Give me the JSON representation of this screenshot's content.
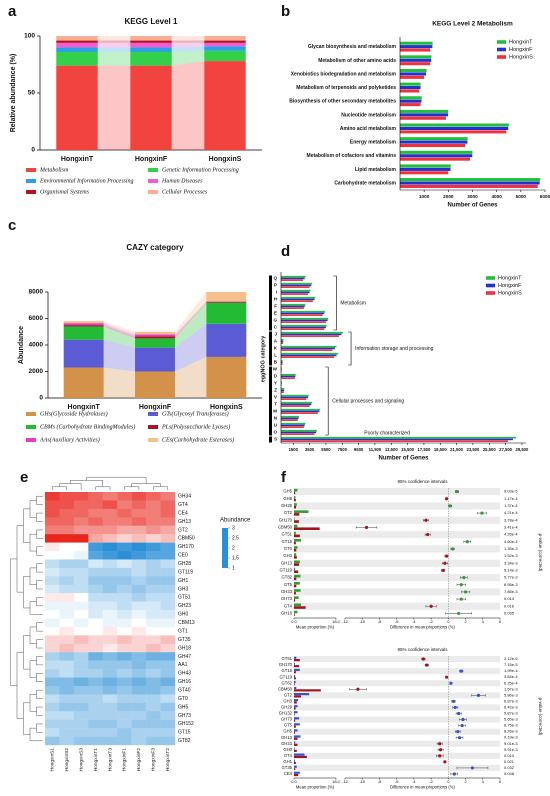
{
  "chart_data": [
    {
      "panel_label": "a",
      "type": "stacked_bar",
      "title": "KEGG Level 1",
      "ylabel": "Relative abundance (%)",
      "categories": [
        "HongxinT",
        "HongxinF",
        "HongxinS"
      ],
      "ylim": [
        0,
        100
      ],
      "yticks": [
        0,
        50,
        100
      ],
      "series": [
        {
          "name": "Metabolism",
          "color": "#f2433e",
          "values": [
            74,
            74,
            78
          ]
        },
        {
          "name": "Genetic Information Processing",
          "color": "#33d04a",
          "values": [
            12,
            12,
            9
          ]
        },
        {
          "name": "Environmental Information Processing",
          "color": "#2a9fe6",
          "values": [
            4,
            4,
            4
          ]
        },
        {
          "name": "Human Diseases",
          "color": "#f45ad2",
          "values": [
            4,
            4,
            3
          ]
        },
        {
          "name": "Organismal Systems",
          "color": "#b3111c",
          "values": [
            2,
            2,
            2
          ]
        },
        {
          "name": "Cellular Processes",
          "color": "#f8ad94",
          "values": [
            4,
            4,
            4
          ]
        }
      ]
    },
    {
      "panel_label": "b",
      "type": "hbar",
      "title": "KEGG Level 2 Metabolism",
      "xlabel": "Number of Genes",
      "categories": [
        "Glycan biosynthesis and metabolism",
        "Metabolism of other amino acids",
        "Xenobiotics biodegradation and metabolism",
        "Metabolism of terpenoids and polyketides",
        "Biosynthesis of other secondary metabolites",
        "Nucleotide metabolism",
        "Amino acid metabolism",
        "Energy metabolism",
        "Metabolism of cofactors and vitamins",
        "Lipid metabolism",
        "Carbohydrate metabolism"
      ],
      "xlim": [
        0,
        6000
      ],
      "xticks": [
        1000,
        2000,
        3000,
        4000,
        5000,
        6000
      ],
      "series": [
        {
          "name": "HongxinT",
          "color": "#22c03a",
          "values": [
            1350,
            1300,
            1100,
            850,
            900,
            2000,
            4500,
            2800,
            3000,
            2100,
            5800
          ]
        },
        {
          "name": "HongxinF",
          "color": "#2430d0",
          "values": [
            1340,
            1290,
            1080,
            850,
            890,
            1990,
            4480,
            2790,
            2990,
            2090,
            5780
          ]
        },
        {
          "name": "HongxinS",
          "color": "#f0303a",
          "values": [
            1250,
            1250,
            1000,
            800,
            850,
            1900,
            4400,
            2700,
            2900,
            2000,
            5700
          ]
        }
      ]
    },
    {
      "panel_label": "c",
      "type": "stacked_bar",
      "title": "CAZY category",
      "ylabel": "Abundance",
      "categories": [
        "HongxinT",
        "HongxinF",
        "HongxinS"
      ],
      "ylim": [
        0,
        8000
      ],
      "yticks": [
        0,
        2000,
        4000,
        6000,
        8000
      ],
      "series": [
        {
          "name": "GHs(Glycoside Hydrolases)",
          "color": "#d4914a",
          "values": [
            2300,
            2000,
            3100
          ]
        },
        {
          "name": "GTs(Glycosyl Transferases)",
          "color": "#5b5bd6",
          "values": [
            2100,
            1800,
            2500
          ]
        },
        {
          "name": "CBMs (Carbohydrate BindingModules)",
          "color": "#22bb33",
          "values": [
            1000,
            700,
            1600
          ]
        },
        {
          "name": "PLs(Polysaccharide Lyases)",
          "color": "#aa1122",
          "values": [
            100,
            150,
            50
          ]
        },
        {
          "name": "AAs(Auxiliary Activities)",
          "color": "#e040c0",
          "values": [
            150,
            150,
            50
          ]
        },
        {
          "name": "CEs(Carbohydrate Esterases)",
          "color": "#f5c08a",
          "values": [
            150,
            200,
            700
          ]
        }
      ]
    },
    {
      "panel_label": "d",
      "type": "hbar",
      "xlabel": "Number of Genes",
      "ylabel": "eggNOG category",
      "groups": [
        {
          "label": "Metabolism",
          "categories": [
            "Q",
            "P",
            "I",
            "H",
            "F",
            "E",
            "G",
            "C"
          ]
        },
        {
          "label": "Information storage and processing",
          "categories": [
            "J",
            "A",
            "K",
            "L",
            "B"
          ]
        },
        {
          "label": "Cellular processes and signaling",
          "categories": [
            "W",
            "D",
            "Y",
            "Z",
            "V",
            "T",
            "M",
            "N",
            "U",
            "O"
          ]
        },
        {
          "label": "Poorly characterized",
          "categories": [
            "S"
          ]
        }
      ],
      "xlim": [
        0,
        30000
      ],
      "xticks": [
        1500,
        3500,
        5500,
        7500,
        9500,
        {
          "value": 11500,
          "label": "11,500"
        },
        {
          "value": 13500,
          "label": "13,500"
        },
        {
          "value": 15500,
          "label": "15,500"
        },
        {
          "value": 17500,
          "label": "17,500"
        },
        {
          "value": 19500,
          "label": "19,500"
        },
        {
          "value": 21500,
          "label": "21,500"
        },
        {
          "value": 23500,
          "label": "23,500"
        },
        {
          "value": 25500,
          "label": "25,500"
        },
        {
          "value": 27500,
          "label": "27,500"
        },
        {
          "value": 29500,
          "label": "29,500"
        }
      ],
      "series": [
        {
          "name": "HongxinT",
          "color": "#22c03a",
          "values": [
            3000,
            3800,
            3600,
            4200,
            3000,
            5400,
            5800,
            5600,
            7600,
            300,
            6800,
            7000,
            200,
            100,
            1800,
            100,
            400,
            3400,
            3800,
            4800,
            2200,
            3000,
            4400,
            28800
          ]
        },
        {
          "name": "HongxinF",
          "color": "#2430d0",
          "values": [
            2900,
            3700,
            3500,
            4100,
            2900,
            5300,
            5700,
            5500,
            7400,
            280,
            6600,
            6800,
            190,
            90,
            1750,
            90,
            380,
            3300,
            3700,
            4700,
            2150,
            2900,
            4300,
            28400
          ]
        },
        {
          "name": "HongxinS",
          "color": "#f0303a",
          "values": [
            2700,
            3500,
            3300,
            3900,
            2800,
            5100,
            5500,
            5300,
            7100,
            260,
            6300,
            6500,
            180,
            80,
            1700,
            80,
            350,
            3100,
            3500,
            4500,
            2050,
            2800,
            4100,
            27800
          ]
        }
      ]
    },
    {
      "panel_label": "e",
      "type": "heatmap",
      "colorbar_title": "Abundance",
      "clim": [
        1,
        3
      ],
      "colorbar_ticks": [
        3,
        2.5,
        2,
        1.5,
        1
      ],
      "colormap": [
        "#2b8fd6",
        "#ffffff",
        "#e8261c"
      ],
      "columns": [
        "HongxinS1",
        "HongxinS2",
        "HongxinS3",
        "HongxinT1",
        "HongxinT3",
        "HongxinF1",
        "HongxinF2",
        "HongxinF3",
        "HongxinT2"
      ],
      "rows": [
        "GH34",
        "GT4",
        "CE4",
        "GH13",
        "GT2",
        "CBM50",
        "GH170",
        "CE0",
        "GH28",
        "GT119",
        "GH1",
        "GH3",
        "GT51",
        "GH23",
        "GH0",
        "CBM13",
        "GT1",
        "GT35",
        "GH18",
        "GH47",
        "AA1",
        "GH43",
        "GH16",
        "GT40",
        "GT0",
        "GH5",
        "GH73",
        "GH152",
        "GT15",
        "GT82"
      ],
      "values": [
        [
          2.9,
          2.8,
          2.8,
          2.7,
          2.6,
          2.7,
          2.8,
          2.7,
          2.6
        ],
        [
          2.8,
          2.8,
          2.7,
          2.7,
          2.8,
          2.6,
          2.7,
          2.6,
          2.7
        ],
        [
          2.8,
          2.7,
          2.7,
          2.6,
          2.6,
          2.7,
          2.6,
          2.6,
          2.7
        ],
        [
          2.7,
          2.7,
          2.6,
          2.7,
          2.6,
          2.6,
          2.7,
          2.6,
          2.6
        ],
        [
          2.6,
          2.6,
          2.5,
          2.5,
          2.5,
          2.4,
          2.4,
          2.5,
          2.4
        ],
        [
          3,
          3,
          3,
          2.4,
          2.3,
          2.2,
          2.3,
          2.2,
          2.3
        ],
        [
          2.1,
          2,
          2,
          1.1,
          1,
          1.1,
          1,
          1.1,
          1.2
        ],
        [
          2,
          2,
          1.9,
          1.2,
          1.1,
          1,
          1.1,
          1.2,
          1.2
        ],
        [
          1.7,
          1.6,
          1.6,
          1.8,
          1.7,
          1.8,
          1.7,
          1.6,
          1.7
        ],
        [
          1.8,
          1.7,
          1.7,
          1.6,
          1.6,
          1.6,
          1.7,
          1.6,
          1.6
        ],
        [
          1.7,
          1.6,
          1.7,
          1.5,
          1.5,
          1.5,
          1.6,
          1.5,
          1.5
        ],
        [
          1.8,
          1.7,
          1.7,
          1.6,
          1.5,
          1.6,
          1.5,
          1.6,
          1.6
        ],
        [
          2.1,
          2.1,
          2,
          1.7,
          1.7,
          1.7,
          1.6,
          1.7,
          1.7
        ],
        [
          1.9,
          1.9,
          1.9,
          1.8,
          1.8,
          1.7,
          1.8,
          1.8,
          1.7
        ],
        [
          2,
          1.9,
          2,
          1.8,
          1.9,
          1.8,
          1.9,
          1.8,
          1.8
        ],
        [
          1.9,
          2,
          1.9,
          2,
          1.9,
          1.9,
          2,
          1.9,
          1.9
        ],
        [
          2,
          2.1,
          2,
          2,
          2.1,
          2,
          2.1,
          2,
          2
        ],
        [
          2.2,
          2.2,
          2.3,
          2.2,
          2.2,
          2.3,
          2.2,
          2.2,
          2.3
        ],
        [
          2.2,
          2.3,
          2.2,
          2.2,
          2.1,
          2.2,
          2.2,
          2.3,
          2.2
        ],
        [
          1.6,
          1.5,
          1.6,
          1.3,
          1.4,
          1.3,
          1.4,
          1.3,
          1.3
        ],
        [
          1.7,
          1.7,
          1.6,
          1.5,
          1.5,
          1.5,
          1.4,
          1.5,
          1.5
        ],
        [
          1.6,
          1.7,
          1.6,
          1.6,
          1.5,
          1.6,
          1.5,
          1.6,
          1.5
        ],
        [
          1.4,
          1.4,
          1.3,
          1.4,
          1.3,
          1.4,
          1.3,
          1.4,
          1.3
        ],
        [
          1.5,
          1.4,
          1.5,
          1.5,
          1.4,
          1.5,
          1.4,
          1.4,
          1.5
        ],
        [
          1.7,
          1.6,
          1.6,
          1.6,
          1.7,
          1.6,
          1.6,
          1.6,
          1.7
        ],
        [
          1.6,
          1.5,
          1.5,
          1.6,
          1.6,
          1.5,
          1.5,
          1.6,
          1.5
        ],
        [
          1.7,
          1.7,
          1.6,
          1.6,
          1.6,
          1.6,
          1.6,
          1.5,
          1.6
        ],
        [
          1.6,
          1.6,
          1.6,
          1.5,
          1.5,
          1.6,
          1.5,
          1.5,
          1.5
        ],
        [
          1.7,
          1.6,
          1.6,
          1.6,
          1.6,
          1.5,
          1.6,
          1.6,
          1.6
        ],
        [
          1.5,
          1.6,
          1.5,
          1.5,
          1.5,
          1.5,
          1.6,
          1.5,
          1.5
        ]
      ]
    },
    {
      "panel_label": "f",
      "type": "extended_error_bar",
      "title": "95% confidence intervals",
      "xlabel": "Mean proportion (%)",
      "x2label": "Difference in mean proportions (%)",
      "p_label": "p-value (corrected)",
      "xlim": [
        0,
        18
      ],
      "xticks": [
        {
          "value": 0,
          "label": "0.0"
        },
        {
          "value": 18,
          "label": "18.0"
        }
      ],
      "x2lim": [
        -12,
        6
      ],
      "x2ticks": [
        -12,
        -10,
        -8,
        -6,
        -4,
        -2,
        0,
        2,
        4,
        6
      ],
      "categories": [
        "GH5",
        "GH8",
        "GH29",
        "GT2",
        "GH170",
        "CBM50",
        "GT51",
        "GT15",
        "GT0",
        "GH3",
        "GH13",
        "GT119",
        "GT82",
        "GT5",
        "GH23",
        "GH73",
        "GT4",
        "GH16"
      ],
      "series": [
        {
          "color": "#2e9e2e",
          "values": [
            1.5,
            0.6,
            1.2,
            6.2,
            0.2,
            1.5,
            0.8,
            3,
            1.5,
            1,
            2.5,
            0.5,
            2.8,
            2.5,
            2.8,
            2,
            3,
            1.5
          ]
        },
        {
          "color": "#a5121b",
          "values": [
            0.5,
            0.8,
            0.9,
            2.3,
            2.1,
            11,
            2.5,
            0.8,
            1,
            1.2,
            2.2,
            1.8,
            1,
            1,
            0.8,
            0.5,
            5,
            0.3
          ]
        }
      ],
      "differences": [
        1,
        -0.2,
        0.2,
        3.9,
        -2.6,
        -9.5,
        -2.4,
        2.2,
        0.5,
        -0.2,
        -0.4,
        -0.6,
        1.8,
        1.5,
        2,
        1.5,
        -2,
        1.2
      ],
      "errors": [
        0.2,
        0.1,
        0.2,
        0.5,
        0.3,
        1.2,
        0.3,
        0.4,
        0.2,
        0.2,
        0.3,
        0.2,
        0.4,
        0.5,
        0.5,
        0.5,
        0.6,
        1.5
      ],
      "p_values": [
        "9.03e-5",
        "1.17e-4",
        "1.37e-4",
        "4.21e-4",
        "3.78e-4",
        "3.41e-4",
        "4.26e-4",
        "4.60e-4",
        "1.39e-3",
        "1.52e-3",
        "3.34e-3",
        "5.14e-3",
        "5.77e-3",
        "6.95e-3",
        "7.85e-3",
        "0.014",
        "0.016",
        "0.035"
      ]
    },
    {
      "type": "extended_error_bar",
      "title": "95% confidence intervals",
      "xlabel": "Mean proportion (%)",
      "x2label": "Difference in mean proportions (%)",
      "p_label": "p-value (corrected)",
      "xlim": [
        0,
        18
      ],
      "xticks": [
        {
          "value": 0,
          "label": "0.0"
        },
        {
          "value": 18,
          "label": "18.0"
        }
      ],
      "x2lim": [
        -12,
        6
      ],
      "x2ticks": [
        -12,
        -10,
        -8,
        -6,
        -4,
        -2,
        0,
        2,
        4,
        6
      ],
      "categories": [
        "GT51",
        "GH170",
        "GT15",
        "GT119",
        "GT62",
        "CBM50",
        "GT2",
        "GH3",
        "GH29",
        "GH132",
        "GH73",
        "GT5",
        "GH5",
        "GH13",
        "GH23",
        "GH0",
        "GT4",
        "GH1",
        "GT35",
        "CE4"
      ],
      "series": [
        {
          "color": "#3355cc",
          "values": [
            1,
            0.4,
            2.5,
            0.5,
            0.7,
            1,
            6.5,
            1.8,
            1.5,
            1.5,
            2.2,
            2.5,
            1.5,
            2.8,
            0.5,
            0.3,
            4.5,
            0.4,
            1.2,
            2.5
          ]
        },
        {
          "color": "#a5121b",
          "values": [
            2.5,
            2.2,
            0.8,
            0.8,
            0.3,
            11.5,
            3,
            1.2,
            0.7,
            0.3,
            0.5,
            0.8,
            0.4,
            1.5,
            1.5,
            1.2,
            5.5,
            0.8,
            0.5,
            1.8
          ]
        }
      ],
      "differences": [
        -2.9,
        -2.5,
        1.5,
        -0.2,
        0.3,
        -10.5,
        3.5,
        0.6,
        0.8,
        1.2,
        1.7,
        1.6,
        1.1,
        1.3,
        -1,
        -0.9,
        -1,
        -0.4,
        2.8,
        0.7
      ],
      "errors": [
        0.2,
        0.2,
        0.2,
        0.1,
        0.1,
        1,
        0.8,
        0.2,
        0.3,
        0.3,
        0.4,
        0.4,
        0.3,
        0.4,
        0.3,
        0.3,
        0.4,
        0.1,
        1.8,
        0.4
      ],
      "p_values": [
        "2.12e-6",
        "7.15e-5",
        "1.99e-4",
        "3.84e-4",
        "6.25e-4",
        "1.57e-3",
        "5.86e-3",
        "6.87e-3",
        "6.42e-3",
        "5.87e-3",
        "5.65e-3",
        "6.75e-3",
        "8.26e-3",
        "9.19e-3",
        "9.01e-3",
        "9.91e-3",
        "0.010",
        "0.021",
        "0.032",
        "0.048"
      ]
    }
  ]
}
